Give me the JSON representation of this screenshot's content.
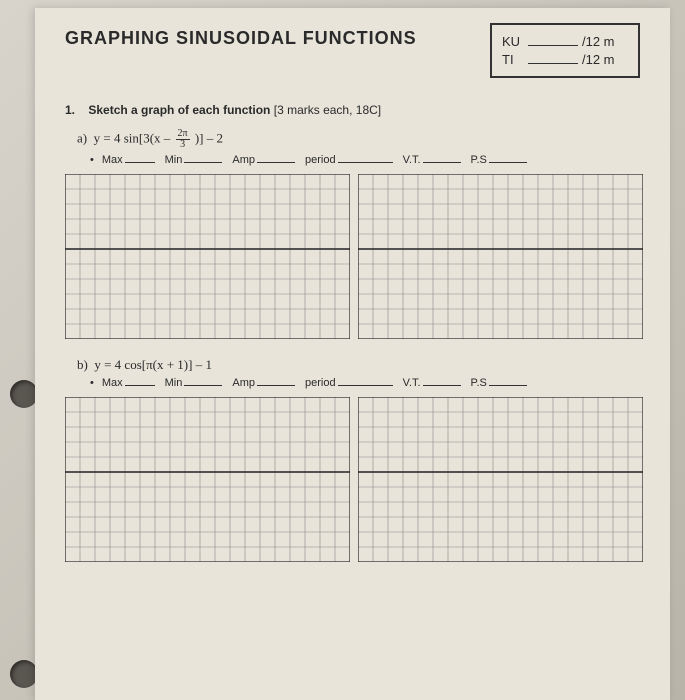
{
  "title": "GRAPHING SINUSOIDAL FUNCTIONS",
  "scores": {
    "ku_label": "KU",
    "ku_total": "/12 m",
    "ti_label": "TI",
    "ti_total": "/12 m"
  },
  "q1": {
    "number": "1.",
    "text": "Sketch a graph of each function",
    "marks": "[3 marks each, 18C]"
  },
  "parts": {
    "a": {
      "label": "a)",
      "formula_prefix": "y = 4 sin[3(x –",
      "frac_num": "2π",
      "frac_den": "3",
      "formula_suffix": ")] – 2"
    },
    "b": {
      "label": "b)",
      "formula": "y = 4 cos[π(x + 1)] – 1"
    }
  },
  "props": {
    "max": "Max",
    "min": "Min",
    "amp": "Amp",
    "period": "period",
    "vt": "V.T.",
    "ps": "P.S"
  },
  "grid": {
    "cols": 19,
    "rows": 11,
    "cell": 15,
    "axis_row": 5,
    "line_color": "#888",
    "axis_color": "#222",
    "bg": "#e8e4da"
  }
}
